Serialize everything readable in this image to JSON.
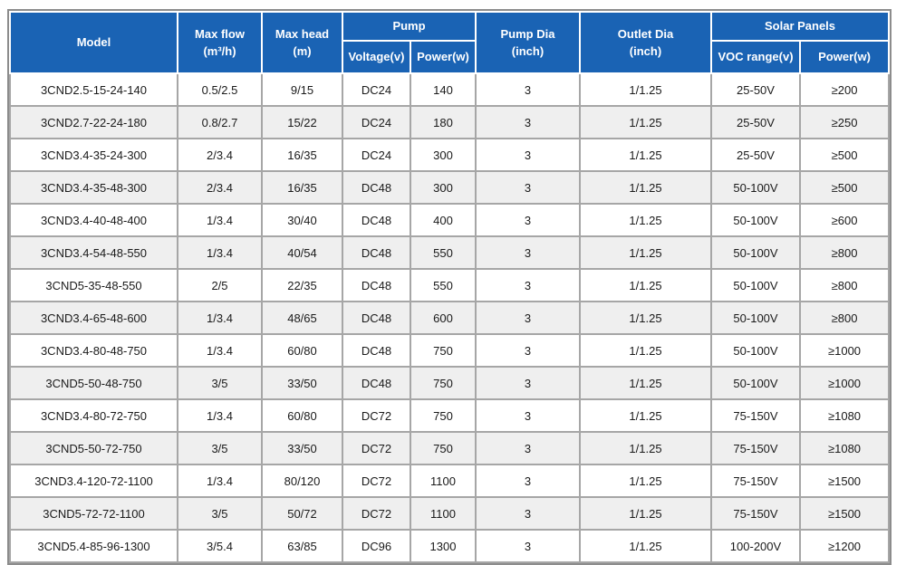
{
  "colors": {
    "header_bg": "#1A63B4",
    "header_text": "#FFFFFF",
    "row_bg": "#FFFFFF",
    "row_stripe_bg": "#EFEFEF",
    "cell_border": "#A6A6A6",
    "outer_border": "#8C8C8C",
    "body_text": "#1A1A1A"
  },
  "table": {
    "header": {
      "model": "Model",
      "max_flow": "Max flow\n(m³/h)",
      "max_head": "Max head\n(m)",
      "pump_group": "Pump",
      "voltage": "Voltage(v)",
      "pump_power": "Power(w)",
      "pump_dia": "Pump Dia\n(inch)",
      "outlet_dia": "Outlet Dia\n(inch)",
      "solar_panels_group": "Solar Panels",
      "voc_range": "VOC range(v)",
      "solar_power": "Power(w)"
    },
    "column_keys": [
      "model-cell",
      "max-flow-cell",
      "max-head-cell",
      "voltage-cell",
      "pump-power-cell",
      "pump-dia-cell",
      "outlet-dia-cell",
      "voc-range-cell",
      "solar-power-cell"
    ],
    "rows": [
      [
        "3CND2.5-15-24-140",
        "0.5/2.5",
        "9/15",
        "DC24",
        "140",
        "3",
        "1/1.25",
        "25-50V",
        "≥200"
      ],
      [
        "3CND2.7-22-24-180",
        "0.8/2.7",
        "15/22",
        "DC24",
        "180",
        "3",
        "1/1.25",
        "25-50V",
        "≥250"
      ],
      [
        "3CND3.4-35-24-300",
        "2/3.4",
        "16/35",
        "DC24",
        "300",
        "3",
        "1/1.25",
        "25-50V",
        "≥500"
      ],
      [
        "3CND3.4-35-48-300",
        "2/3.4",
        "16/35",
        "DC48",
        "300",
        "3",
        "1/1.25",
        "50-100V",
        "≥500"
      ],
      [
        "3CND3.4-40-48-400",
        "1/3.4",
        "30/40",
        "DC48",
        "400",
        "3",
        "1/1.25",
        "50-100V",
        "≥600"
      ],
      [
        "3CND3.4-54-48-550",
        "1/3.4",
        "40/54",
        "DC48",
        "550",
        "3",
        "1/1.25",
        "50-100V",
        "≥800"
      ],
      [
        "3CND5-35-48-550",
        "2/5",
        "22/35",
        "DC48",
        "550",
        "3",
        "1/1.25",
        "50-100V",
        "≥800"
      ],
      [
        "3CND3.4-65-48-600",
        "1/3.4",
        "48/65",
        "DC48",
        "600",
        "3",
        "1/1.25",
        "50-100V",
        "≥800"
      ],
      [
        "3CND3.4-80-48-750",
        "1/3.4",
        "60/80",
        "DC48",
        "750",
        "3",
        "1/1.25",
        "50-100V",
        "≥1000"
      ],
      [
        "3CND5-50-48-750",
        "3/5",
        "33/50",
        "DC48",
        "750",
        "3",
        "1/1.25",
        "50-100V",
        "≥1000"
      ],
      [
        "3CND3.4-80-72-750",
        "1/3.4",
        "60/80",
        "DC72",
        "750",
        "3",
        "1/1.25",
        "75-150V",
        "≥1080"
      ],
      [
        "3CND5-50-72-750",
        "3/5",
        "33/50",
        "DC72",
        "750",
        "3",
        "1/1.25",
        "75-150V",
        "≥1080"
      ],
      [
        "3CND3.4-120-72-1100",
        "1/3.4",
        "80/120",
        "DC72",
        "1100",
        "3",
        "1/1.25",
        "75-150V",
        "≥1500"
      ],
      [
        "3CND5-72-72-1100",
        "3/5",
        "50/72",
        "DC72",
        "1100",
        "3",
        "1/1.25",
        "75-150V",
        "≥1500"
      ],
      [
        "3CND5.4-85-96-1300",
        "3/5.4",
        "63/85",
        "DC96",
        "1300",
        "3",
        "1/1.25",
        "100-200V",
        "≥1200"
      ]
    ]
  }
}
